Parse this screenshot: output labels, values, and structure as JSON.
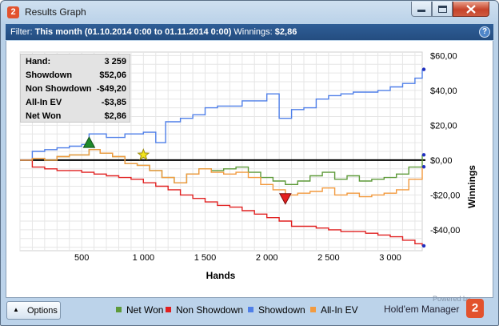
{
  "window": {
    "title": "Results Graph",
    "app_icon": "2"
  },
  "filter": {
    "prefix": "Filter:",
    "range": "This month (01.10.2014 0:00 to 01.11.2014 0:00)",
    "winnings_label": "Winnings:",
    "winnings_value": "$2,86",
    "help_icon": "?"
  },
  "stats": [
    {
      "label": "Hand:",
      "value": "3 259"
    },
    {
      "label": "Showdown",
      "value": "$52,06"
    },
    {
      "label": "Non Showdown",
      "value": "-$49,20"
    },
    {
      "label": "All-In EV",
      "value": "-$3,85"
    },
    {
      "label": "Net Won",
      "value": "$2,86"
    }
  ],
  "footer": {
    "options_label": "Options",
    "powered_by": "Powered by",
    "brand": "Hold'em Manager",
    "brand_logo": "2"
  },
  "chart_data": {
    "type": "line",
    "xlabel": "Hands",
    "ylabel": "Winnings",
    "xlim": [
      0,
      3259
    ],
    "ylim": [
      -52,
      62
    ],
    "x_ticks": [
      500,
      1000,
      1500,
      2000,
      2500,
      3000
    ],
    "x_tick_labels": [
      "500",
      "1 000",
      "1 500",
      "2 000",
      "2 500",
      "3 000"
    ],
    "y_ticks": [
      60,
      40,
      20,
      0,
      -20,
      -40
    ],
    "y_tick_labels": [
      "$60,00",
      "$40,00",
      "$20,00",
      "$0,00",
      "-$20,00",
      "-$40,00"
    ],
    "grid": true,
    "legend_position": "bottom",
    "series": [
      {
        "name": "Net Won",
        "color": "#5e9a3a",
        "x": [
          0,
          100,
          200,
          300,
          400,
          500,
          560,
          650,
          750,
          850,
          950,
          1050,
          1150,
          1250,
          1350,
          1450,
          1550,
          1650,
          1750,
          1850,
          1950,
          2050,
          2150,
          2250,
          2350,
          2450,
          2550,
          2650,
          2750,
          2850,
          2950,
          3050,
          3150,
          3259
        ],
        "y": [
          0,
          1,
          0,
          2,
          3,
          3,
          6,
          4,
          2,
          -2,
          -3,
          -6,
          -10,
          -13,
          -8,
          -5,
          -6,
          -5,
          -4,
          -7,
          -10,
          -12,
          -14,
          -12,
          -9,
          -7,
          -11,
          -9,
          -12,
          -11,
          -10,
          -8,
          -4,
          3
        ]
      },
      {
        "name": "Non Showdown",
        "color": "#e02020",
        "x": [
          0,
          100,
          200,
          300,
          400,
          500,
          600,
          700,
          800,
          900,
          1000,
          1100,
          1200,
          1300,
          1400,
          1500,
          1600,
          1700,
          1800,
          1900,
          2000,
          2100,
          2200,
          2300,
          2400,
          2500,
          2600,
          2700,
          2800,
          2900,
          3000,
          3100,
          3200,
          3259
        ],
        "y": [
          0,
          -4,
          -5,
          -6,
          -6,
          -7,
          -8,
          -9,
          -10,
          -11,
          -13,
          -15,
          -17,
          -20,
          -22,
          -24,
          -26,
          -27,
          -29,
          -31,
          -33,
          -35,
          -38,
          -38,
          -39,
          -40,
          -41,
          -41,
          -42,
          -43,
          -44,
          -46,
          -48,
          -49.2
        ]
      },
      {
        "name": "Showdown",
        "color": "#4f7fe8",
        "x": [
          0,
          100,
          200,
          300,
          400,
          500,
          560,
          700,
          850,
          1000,
          1100,
          1180,
          1300,
          1400,
          1500,
          1600,
          1700,
          1800,
          1900,
          2000,
          2100,
          2200,
          2300,
          2400,
          2500,
          2600,
          2700,
          2800,
          2900,
          3000,
          3100,
          3200,
          3259
        ],
        "y": [
          0,
          5,
          6,
          7,
          8,
          9,
          15,
          13,
          15,
          16,
          10,
          22,
          24,
          26,
          30,
          31,
          31,
          34,
          34,
          38,
          24,
          29,
          30,
          35,
          37,
          38,
          39,
          39,
          40,
          42,
          44,
          47,
          52.06
        ]
      },
      {
        "name": "All-In EV",
        "color": "#f29a3f",
        "x": [
          0,
          100,
          200,
          300,
          400,
          500,
          560,
          650,
          750,
          850,
          950,
          1050,
          1150,
          1250,
          1350,
          1450,
          1550,
          1650,
          1750,
          1850,
          1950,
          2050,
          2150,
          2250,
          2350,
          2450,
          2550,
          2650,
          2750,
          2850,
          2950,
          3050,
          3150,
          3259
        ],
        "y": [
          0,
          1,
          0,
          2,
          3,
          3,
          6,
          4,
          2,
          -2,
          -3,
          -6,
          -10,
          -13,
          -8,
          -5,
          -7,
          -8,
          -7,
          -10,
          -14,
          -17,
          -20,
          -19,
          -18,
          -16,
          -20,
          -19,
          -21,
          -20,
          -19,
          -17,
          -11,
          -3.85
        ]
      }
    ],
    "markers": [
      {
        "label": "high",
        "x": 560,
        "y": 10,
        "shape": "triangle-up",
        "color": "#1e8a2a"
      },
      {
        "label": "star",
        "x": 1000,
        "y": 3,
        "shape": "star",
        "color": "#f2e51d"
      },
      {
        "label": "low",
        "x": 2150,
        "y": -22,
        "shape": "triangle-down",
        "color": "#e42020"
      }
    ]
  }
}
